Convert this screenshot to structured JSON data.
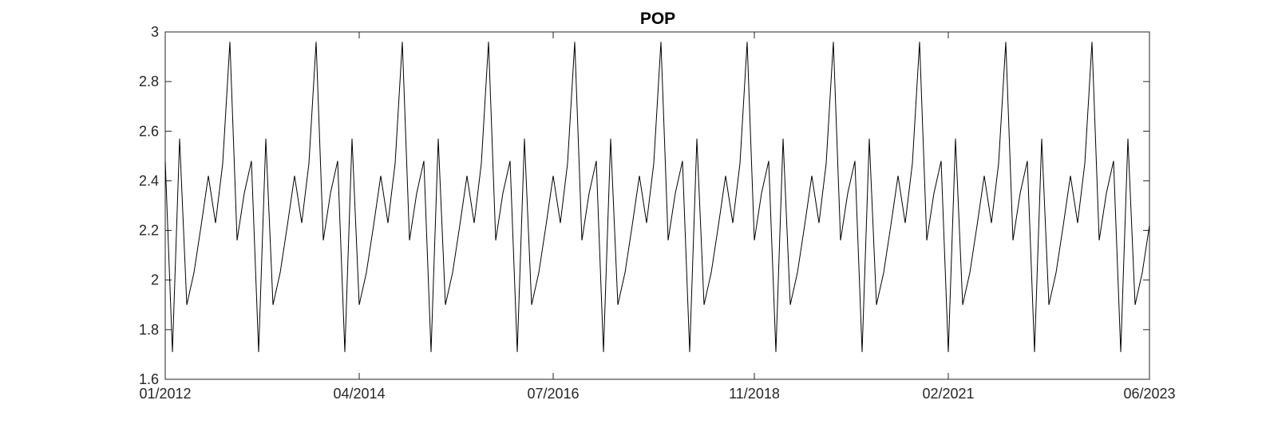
{
  "chart_data": {
    "type": "line",
    "title": "POP",
    "xlabel": "",
    "ylabel": "",
    "x_start": "2012-01",
    "x_end": "2023-06",
    "x_frequency": "monthly",
    "xlim": [
      "2012-01",
      "2023-06"
    ],
    "ylim": [
      1.6,
      3
    ],
    "grid": false,
    "legend": "none",
    "x_ticks": [
      "01/2012",
      "04/2014",
      "07/2016",
      "11/2018",
      "02/2021",
      "06/2023"
    ],
    "x_tick_months": [
      "2012-01",
      "2014-04",
      "2016-07",
      "2018-11",
      "2021-02",
      "2023-06"
    ],
    "y_ticks": [
      "1.6",
      "1.8",
      "2",
      "2.2",
      "2.4",
      "2.6",
      "2.8",
      "3"
    ],
    "y_tick_values": [
      1.6,
      1.8,
      2.0,
      2.2,
      2.4,
      2.6,
      2.8,
      3.0
    ],
    "series": [
      {
        "color": "#000000",
        "values": [
          2.48,
          1.71,
          2.57,
          1.9,
          2.03,
          2.22,
          2.42,
          2.23,
          2.47,
          2.96,
          2.16,
          2.35,
          2.48,
          1.71,
          2.57,
          1.9,
          2.03,
          2.22,
          2.42,
          2.23,
          2.47,
          2.96,
          2.16,
          2.35,
          2.48,
          1.71,
          2.57,
          1.9,
          2.03,
          2.22,
          2.42,
          2.23,
          2.47,
          2.96,
          2.16,
          2.35,
          2.48,
          1.71,
          2.57,
          1.9,
          2.03,
          2.22,
          2.42,
          2.23,
          2.47,
          2.96,
          2.16,
          2.35,
          2.48,
          1.71,
          2.57,
          1.9,
          2.03,
          2.22,
          2.42,
          2.23,
          2.47,
          2.96,
          2.16,
          2.35,
          2.48,
          1.71,
          2.57,
          1.9,
          2.03,
          2.22,
          2.42,
          2.23,
          2.47,
          2.96,
          2.16,
          2.35,
          2.48,
          1.71,
          2.57,
          1.9,
          2.03,
          2.22,
          2.42,
          2.23,
          2.47,
          2.96,
          2.16,
          2.35,
          2.48,
          1.71,
          2.57,
          1.9,
          2.03,
          2.22,
          2.42,
          2.23,
          2.47,
          2.96,
          2.16,
          2.35,
          2.48,
          1.71,
          2.57,
          1.9,
          2.03,
          2.22,
          2.42,
          2.23,
          2.47,
          2.96,
          2.16,
          2.35,
          2.48,
          1.71,
          2.57,
          1.9,
          2.03,
          2.22,
          2.42,
          2.23,
          2.47,
          2.96,
          2.16,
          2.35,
          2.48,
          1.71,
          2.57,
          1.9,
          2.03,
          2.22,
          2.42,
          2.23,
          2.47,
          2.96,
          2.16,
          2.35,
          2.48,
          1.71,
          2.57,
          1.9,
          2.03,
          2.22
        ]
      }
    ]
  }
}
